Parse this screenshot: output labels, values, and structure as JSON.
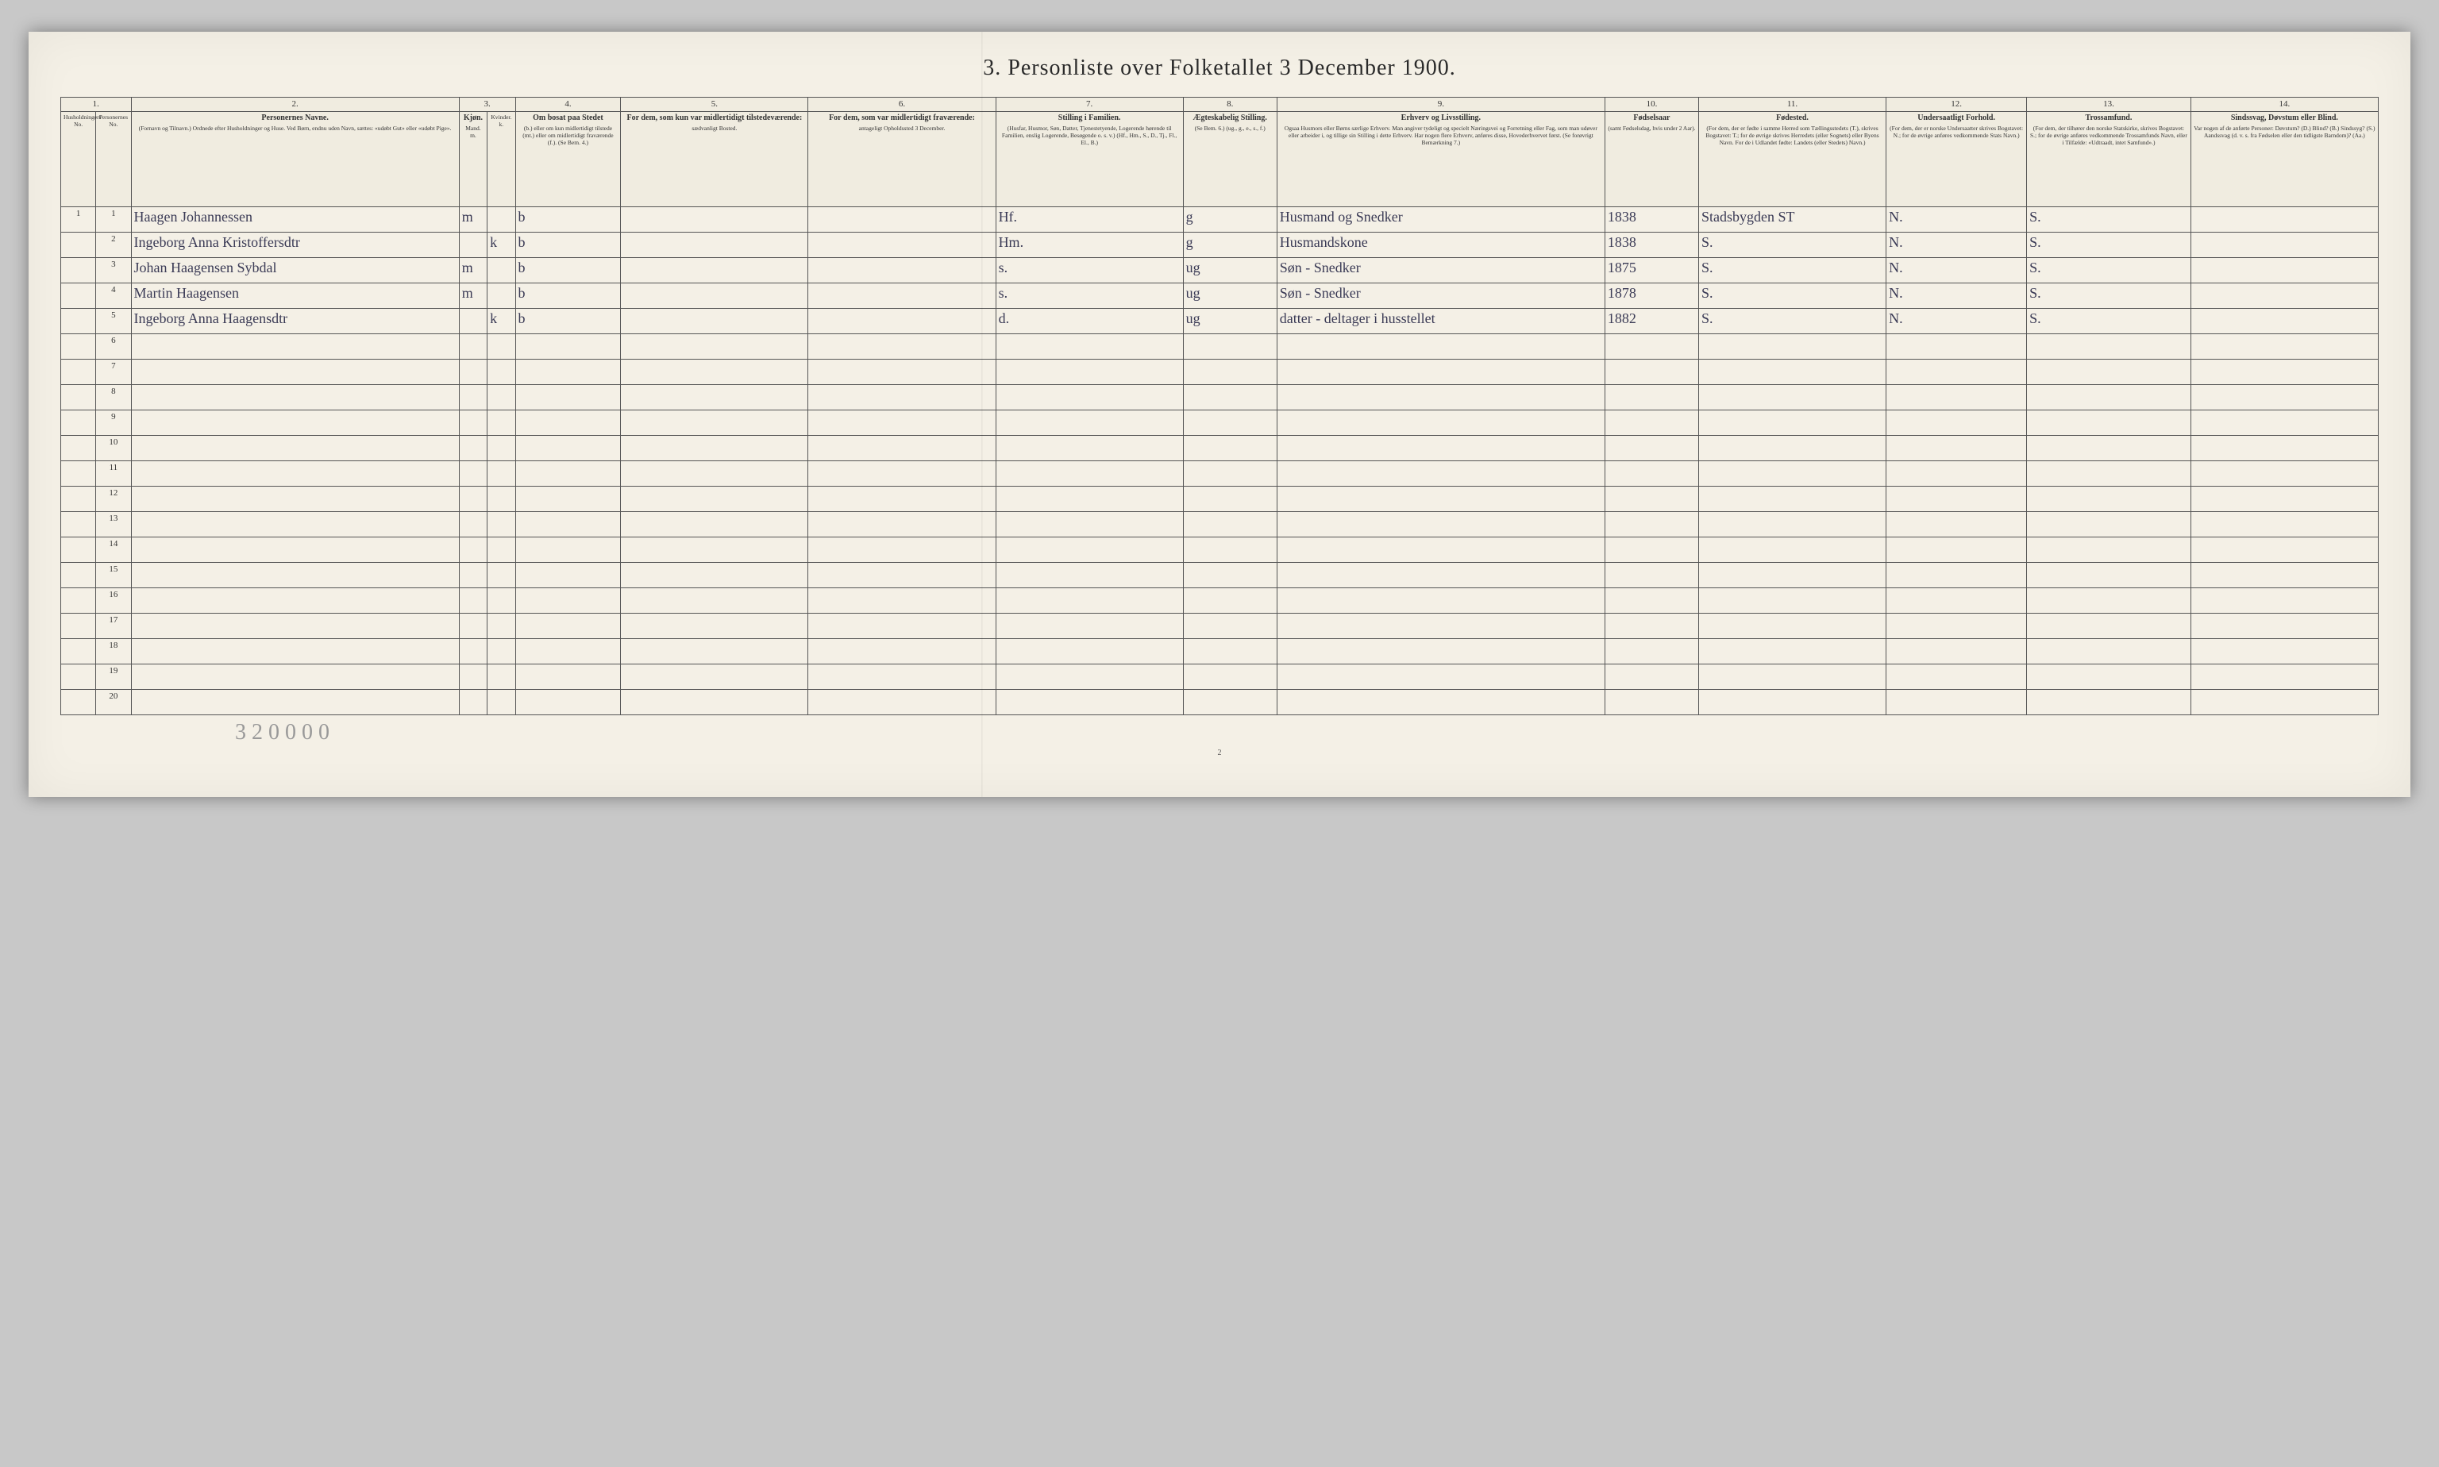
{
  "title": "3. Personliste over Folketallet 3 December 1900.",
  "page_number": "2",
  "pencil_note": "3 2 0 0   0 0",
  "columns": [
    {
      "num": "1.",
      "main": "",
      "sub": "Husholdningers No."
    },
    {
      "num": "",
      "main": "",
      "sub": "Personernes No."
    },
    {
      "num": "2.",
      "main": "Personernes Navne.",
      "sub": "(Fornavn og Tilnavn.) Ordnede efter Husholdninger og Huse. Ved Børn, endnu uden Navn, sættes: «udøbt Gut» eller «udøbt Pige»."
    },
    {
      "num": "3.",
      "main": "Kjøn.",
      "sub": "Mand. m."
    },
    {
      "num": "",
      "main": "",
      "sub": "Kvinder. k."
    },
    {
      "num": "4.",
      "main": "Om bosat paa Stedet",
      "sub": "(b.) eller om kun midlertidigt tilstede (mt.) eller om midlertidigt fraværende (f.). (Se Bem. 4.)"
    },
    {
      "num": "5.",
      "main": "For dem, som kun var midlertidigt tilstedeværende:",
      "sub": "sædvanligt Bosted."
    },
    {
      "num": "6.",
      "main": "For dem, som var midlertidigt fraværende:",
      "sub": "antageligt Opholdssted 3 December."
    },
    {
      "num": "7.",
      "main": "Stilling i Familien.",
      "sub": "(Husfar, Husmor, Søn, Datter, Tjenestetyende, Logerende hørende til Familien, enslig Logerende, Besøgende o. s. v.) (Hf., Hm., S., D., Tj., Fl., El., B.)"
    },
    {
      "num": "8.",
      "main": "Ægteskabelig Stilling.",
      "sub": "(Se Bem. 6.) (ug., g., e., s., f.)"
    },
    {
      "num": "9.",
      "main": "Erhverv og Livsstilling.",
      "sub": "Ogsaa Husmors eller Børns særlige Erhverv. Man angiver tydeligt og specielt Næringsvei og Forretning eller Fag, som man udøver eller arbeider i, og tillige sin Stilling i dette Erhverv. Har nogen flere Erhverv, anføres disse, Hovederhvervet først. (Se forøvrigt Bemærkning 7.)"
    },
    {
      "num": "10.",
      "main": "Fødselsaar",
      "sub": "(samt Fødselsdag, hvis under 2 Aar)."
    },
    {
      "num": "11.",
      "main": "Fødested.",
      "sub": "(For dem, der er fødte i samme Herred som Tællingsstedets (T.), skrives Bogstavet: T.; for de øvrige skrives Herredets (eller Sognets) eller Byens Navn. For de i Udlandet fødte: Landets (eller Stedets) Navn.)"
    },
    {
      "num": "12.",
      "main": "Undersaatligt Forhold.",
      "sub": "(For dem, der er norske Undersaatter skrives Bogstavet: N.; for de øvrige anføres vedkommende Stats Navn.)"
    },
    {
      "num": "13.",
      "main": "Trossamfund.",
      "sub": "(For dem, der tilhører den norske Statskirke, skrives Bogstavet: S.; for de øvrige anføres vedkommende Trossamfunds Navn, eller i Tilfælde: «Udtraadt, intet Samfund».)"
    },
    {
      "num": "14.",
      "main": "Sindssvag, Døvstum eller Blind.",
      "sub": "Var nogen af de anførte Personer: Døvstum? (D.) Blind? (B.) Sindssyg? (S.) Aandssvag (d. v. s. fra Fødselen eller den tidligste Barndom)? (Aa.)"
    }
  ],
  "rows": [
    {
      "hh": "1",
      "pn": "1",
      "name": "Haagen Johannessen",
      "m": "m",
      "k": "",
      "res": "b",
      "c5": "",
      "c6": "",
      "fam": "Hf.",
      "mar": "g",
      "occ": "Husmand og Snedker",
      "year": "1838",
      "birthplace": "Stadsbygden ST",
      "nat": "N.",
      "rel": "S.",
      "c14": ""
    },
    {
      "hh": "",
      "pn": "2",
      "name": "Ingeborg Anna Kristoffersdtr",
      "m": "",
      "k": "k",
      "res": "b",
      "c5": "",
      "c6": "",
      "fam": "Hm.",
      "mar": "g",
      "occ": "Husmandskone",
      "year": "1838",
      "birthplace": "S.",
      "nat": "N.",
      "rel": "S.",
      "c14": ""
    },
    {
      "hh": "",
      "pn": "3",
      "name": "Johan Haagensen Sybdal",
      "m": "m",
      "k": "",
      "res": "b",
      "c5": "",
      "c6": "",
      "fam": "s.",
      "mar": "ug",
      "occ": "Søn - Snedker",
      "year": "1875",
      "birthplace": "S.",
      "nat": "N.",
      "rel": "S.",
      "c14": ""
    },
    {
      "hh": "",
      "pn": "4",
      "name": "Martin Haagensen",
      "m": "m",
      "k": "",
      "res": "b",
      "c5": "",
      "c6": "",
      "fam": "s.",
      "mar": "ug",
      "occ": "Søn - Snedker",
      "year": "1878",
      "birthplace": "S.",
      "nat": "N.",
      "rel": "S.",
      "c14": ""
    },
    {
      "hh": "",
      "pn": "5",
      "name": "Ingeborg Anna Haagensdtr",
      "m": "",
      "k": "k",
      "res": "b",
      "c5": "",
      "c6": "",
      "fam": "d.",
      "mar": "ug",
      "occ": "datter - deltager i husstellet",
      "year": "1882",
      "birthplace": "S.",
      "nat": "N.",
      "rel": "S.",
      "c14": ""
    }
  ],
  "total_rows": 20,
  "colors": {
    "page_bg": "#f4f0e6",
    "outer_bg": "#c8c8c8",
    "border": "#555555",
    "ink": "#3a3a55",
    "print": "#2a2a2a"
  }
}
